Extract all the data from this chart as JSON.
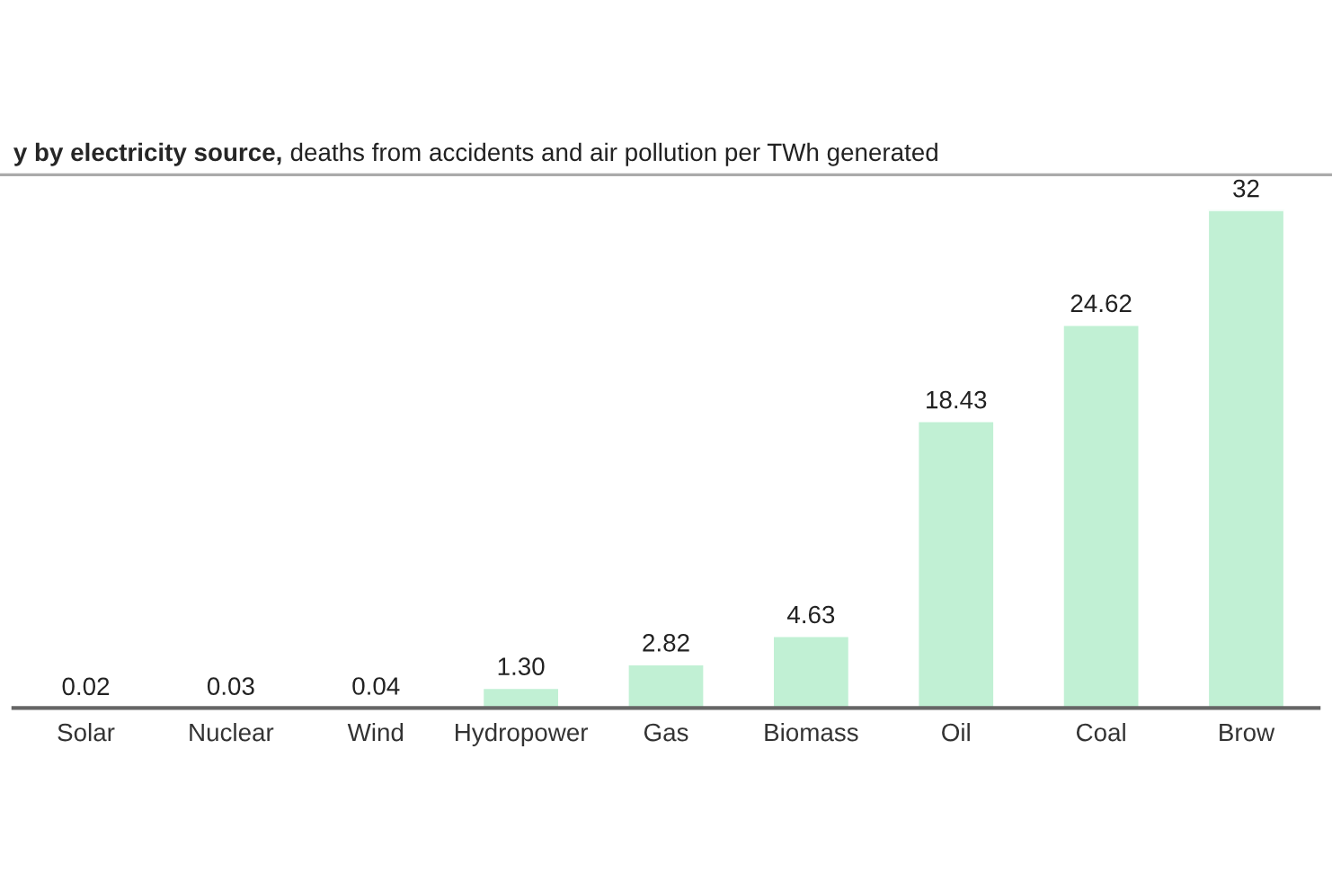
{
  "chart_data": {
    "type": "bar",
    "title": "y by electricity source,",
    "subtitle": "deaths from accidents and air pollution per TWh generated",
    "categories": [
      "Solar",
      "Nuclear",
      "Wind",
      "Hydropower",
      "Gas",
      "Biomass",
      "Oil",
      "Coal",
      "Brow"
    ],
    "values": [
      0.02,
      0.03,
      0.04,
      1.3,
      2.82,
      4.63,
      18.43,
      24.62,
      32
    ],
    "value_labels": [
      "0.02",
      "0.03",
      "0.04",
      "1.30",
      "2.82",
      "4.63",
      "18.43",
      "24.62",
      "32"
    ],
    "color": "#c1f0d4",
    "grid": false,
    "legend": false
  }
}
